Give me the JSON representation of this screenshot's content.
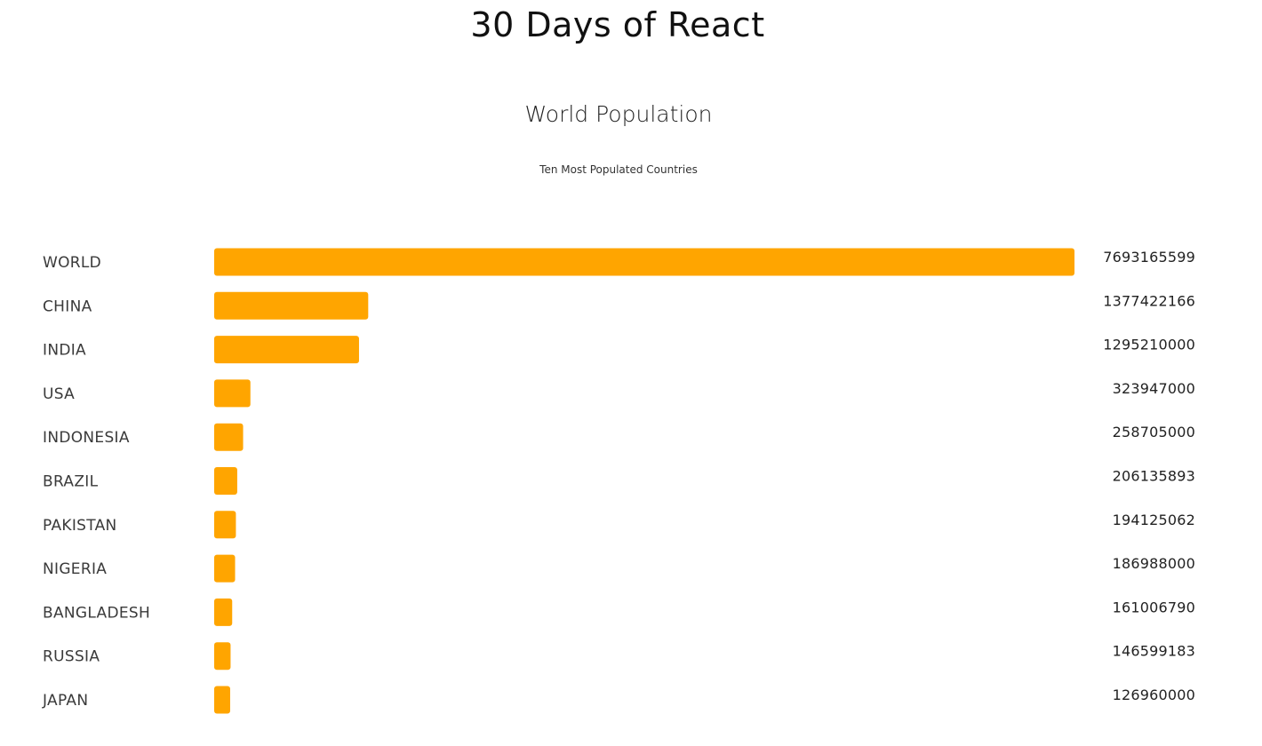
{
  "header": {
    "title": "30 Days of React"
  },
  "chart_data": {
    "type": "bar",
    "orientation": "horizontal",
    "title": "World Population",
    "subtitle": "Ten Most Populated Countries",
    "categories": [
      "WORLD",
      "CHINA",
      "INDIA",
      "USA",
      "INDONESIA",
      "BRAZIL",
      "PAKISTAN",
      "NIGERIA",
      "BANGLADESH",
      "RUSSIA",
      "JAPAN"
    ],
    "values": [
      7693165599,
      1377422166,
      1295210000,
      323947000,
      258705000,
      206135893,
      194125062,
      186988000,
      161006790,
      146599183,
      126960000
    ],
    "value_labels": [
      "7693165599",
      "1377422166",
      "1295210000",
      "323947000",
      "258705000",
      "206135893",
      "194125062",
      "186988000",
      "161006790",
      "146599183",
      "126960000"
    ],
    "bar_color": "#FFA500",
    "grid": false,
    "legend": "none"
  }
}
